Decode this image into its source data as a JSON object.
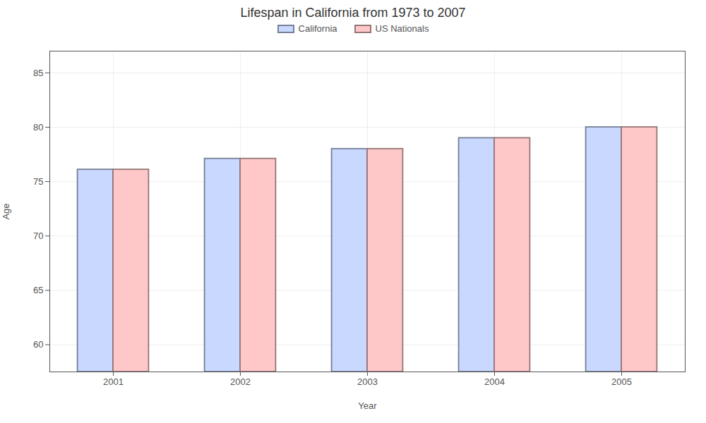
{
  "chart_data": {
    "type": "bar",
    "title": "Lifespan in California from 1973 to 2007",
    "xlabel": "Year",
    "ylabel": "Age",
    "categories": [
      2001,
      2002,
      2003,
      2004,
      2005
    ],
    "series": [
      {
        "name": "California",
        "color": "#c8d8ff",
        "values": [
          76.1,
          77.1,
          78.0,
          79.0,
          80.0
        ]
      },
      {
        "name": "US Nationals",
        "color": "#ffc8c8",
        "values": [
          76.1,
          77.1,
          78.0,
          79.0,
          80.0
        ]
      }
    ],
    "ylim": [
      57.5,
      87
    ],
    "yticks": [
      60,
      65,
      70,
      75,
      80,
      85
    ],
    "grid": true,
    "legend": "upper center"
  }
}
